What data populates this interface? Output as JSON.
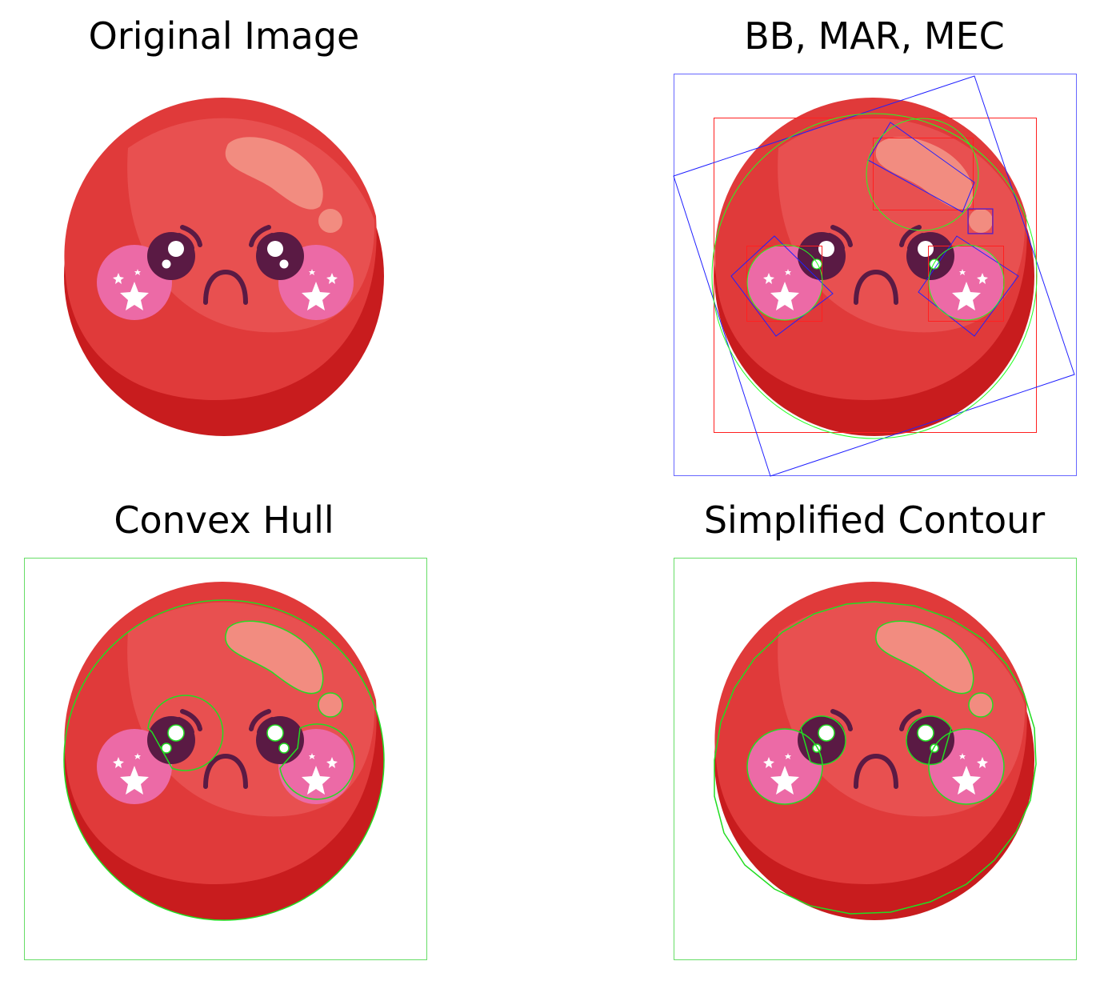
{
  "panels": {
    "original": {
      "title": "Original Image"
    },
    "bounding": {
      "title": "BB, MAR, MEC"
    },
    "hull": {
      "title": "Convex Hull"
    },
    "simplified": {
      "title": "Simplified Contour"
    }
  },
  "colors": {
    "ball_main": "#e03a3a",
    "ball_highlight": "#e85050",
    "ball_shadow": "#c81c1e",
    "shine": "#f28c80",
    "eye": "#5a1a44",
    "cheek": "#ec6aa6",
    "star": "#ffffff",
    "bounding_box": "#ff0000",
    "min_area_rect": "#0000ff",
    "min_enclosing_circle": "#00ff00",
    "contour": "#00cc00"
  }
}
